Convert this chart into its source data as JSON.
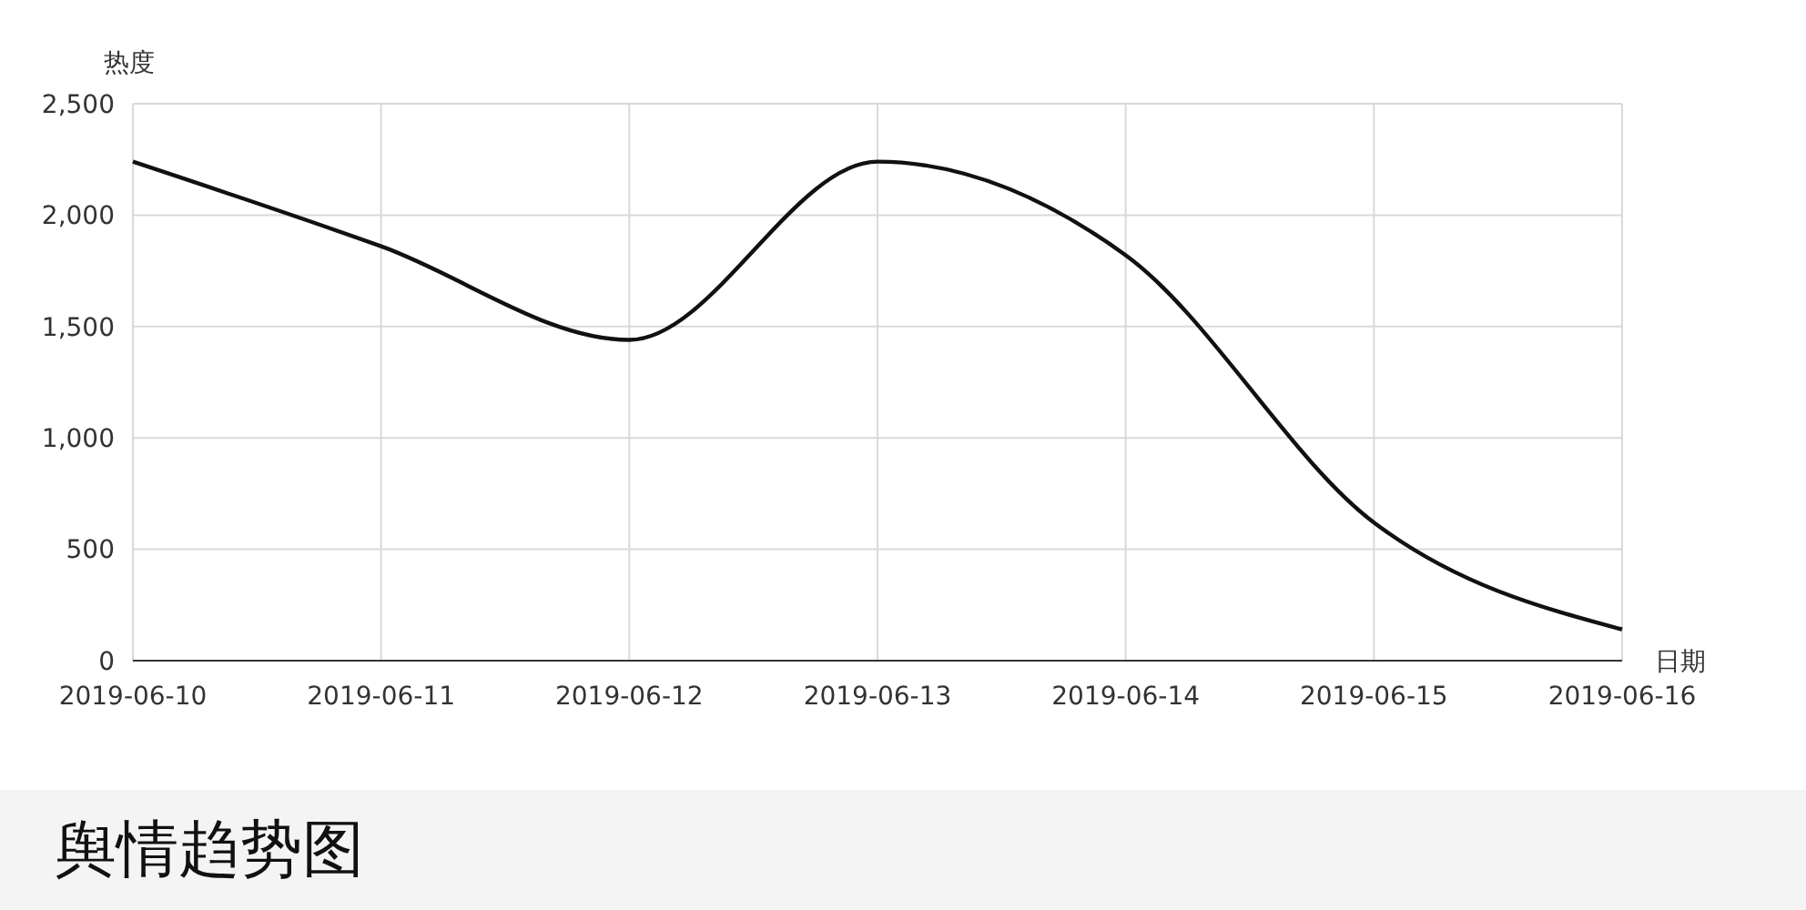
{
  "chart_data": {
    "type": "line",
    "title": "舆情趋势图",
    "xlabel": "日期",
    "ylabel": "热度",
    "categories": [
      "2019-06-10",
      "2019-06-11",
      "2019-06-12",
      "2019-06-13",
      "2019-06-14",
      "2019-06-15",
      "2019-06-16"
    ],
    "series": [
      {
        "color": "#111111",
        "values": [
          2240,
          1860,
          1440,
          2240,
          1820,
          620,
          140
        ]
      }
    ],
    "ylim": [
      0,
      2500
    ],
    "yticks": [
      0,
      {
        "value": 500,
        "label": "500"
      },
      {
        "value": 1000,
        "label": "1,000"
      },
      {
        "value": 1500,
        "label": "1,500"
      },
      {
        "value": 2000,
        "label": "2,000"
      },
      {
        "value": 2500,
        "label": "2,500"
      }
    ],
    "grid": true,
    "marker": "none",
    "line_style": "solid"
  }
}
